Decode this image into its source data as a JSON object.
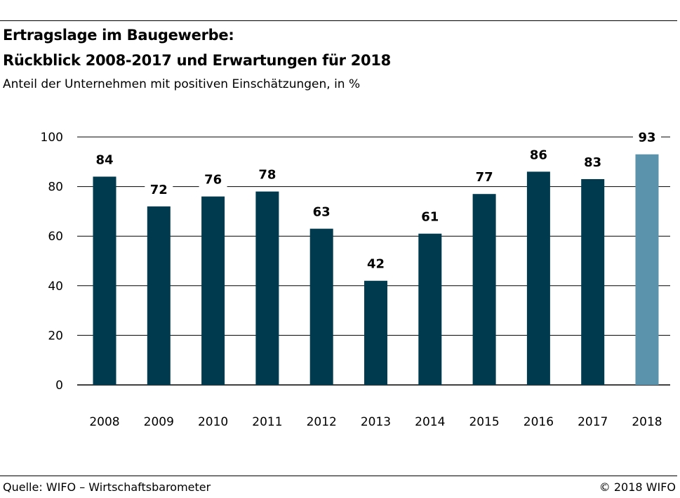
{
  "header": {
    "title_line1": "Ertragslage im Baugewerbe:",
    "title_line2": "Rückblick 2008-2017 und Erwartungen für 2018",
    "subtitle": "Anteil der Unternehmen mit positiven Einschätzungen, in %"
  },
  "footer": {
    "source": "Quelle: WIFO – Wirtschaftsbarometer",
    "copyright": "© 2018 WIFO"
  },
  "colors": {
    "bar_actual": "#003a4f",
    "bar_expected": "#5a93ab",
    "grid": "#000000"
  },
  "chart_data": {
    "type": "bar",
    "categories": [
      "2008",
      "2009",
      "2010",
      "2011",
      "2012",
      "2013",
      "2014",
      "2015",
      "2016",
      "2017",
      "2018"
    ],
    "values": [
      84,
      72,
      76,
      78,
      63,
      42,
      61,
      77,
      86,
      83,
      93
    ],
    "data_labels": [
      "84",
      "72",
      "76",
      "78",
      "63",
      "42",
      "61",
      "77",
      "86",
      "83",
      "93"
    ],
    "highlight_categories": [
      "2018"
    ],
    "yticks": [
      0,
      20,
      40,
      60,
      80,
      100
    ],
    "ylim": [
      0,
      100
    ],
    "grid": true
  }
}
